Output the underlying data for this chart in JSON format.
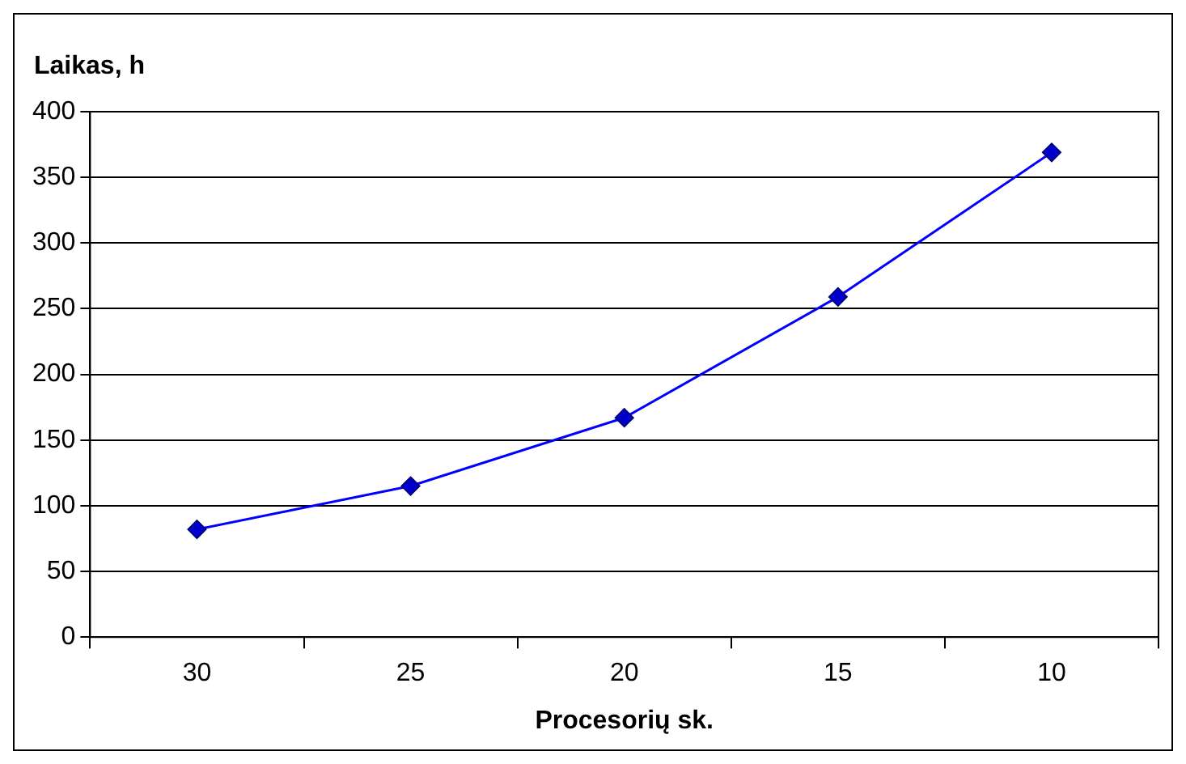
{
  "chart_data": {
    "type": "line",
    "ylabel": "Laikas, h",
    "xlabel": "Procesorių sk.",
    "categories": [
      "30",
      "25",
      "20",
      "15",
      "10"
    ],
    "series": [
      {
        "color": "#0000ff",
        "values": [
          82,
          115,
          167,
          259,
          369
        ]
      }
    ],
    "ylim": [
      0,
      400
    ],
    "yticks": [
      0,
      50,
      100,
      150,
      200,
      250,
      300,
      350,
      400
    ],
    "grid": "y",
    "legend": false,
    "marker": "diamond",
    "line_style": "solid"
  }
}
